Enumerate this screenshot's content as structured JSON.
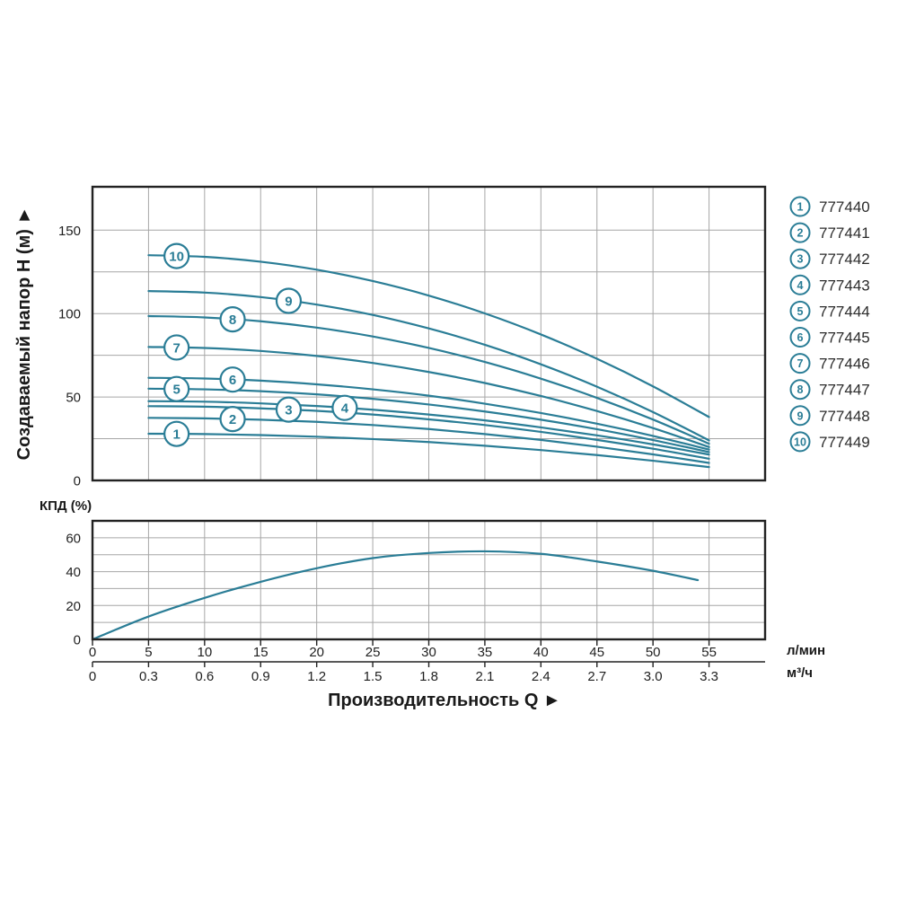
{
  "colors": {
    "accent": "#2a7d96",
    "grid": "#a6a6a6",
    "border": "#222222",
    "text": "#1a1a1a",
    "legend_text": "#2b2b2b"
  },
  "head_chart": {
    "ylabel": "Создаваемый напор H (м) ►",
    "yticks": [
      0,
      50,
      100,
      150
    ]
  },
  "efficiency_chart": {
    "title": "КПД (%)",
    "yticks": [
      0,
      20,
      40,
      60
    ]
  },
  "x_axis": {
    "title": "Производительность Q  ►",
    "primary_unit": "л/мин",
    "secondary_unit": "м³/ч",
    "primary_ticks": [
      "0",
      "5",
      "10",
      "15",
      "20",
      "25",
      "30",
      "35",
      "40",
      "45",
      "50",
      "55"
    ],
    "secondary_ticks": [
      "0",
      "0.3",
      "0.6",
      "0.9",
      "1.2",
      "1.5",
      "1.8",
      "2.1",
      "2.4",
      "2.7",
      "3.0",
      "3.3"
    ]
  },
  "legend": {
    "items": [
      {
        "num": "1",
        "part": "777440"
      },
      {
        "num": "2",
        "part": "777441"
      },
      {
        "num": "3",
        "part": "777442"
      },
      {
        "num": "4",
        "part": "777443"
      },
      {
        "num": "5",
        "part": "777444"
      },
      {
        "num": "6",
        "part": "777445"
      },
      {
        "num": "7",
        "part": "777446"
      },
      {
        "num": "8",
        "part": "777447"
      },
      {
        "num": "9",
        "part": "777448"
      },
      {
        "num": "10",
        "part": "777449"
      }
    ]
  },
  "chart_data": [
    {
      "type": "line",
      "title": "Pump head curves",
      "ylabel": "Создаваемый напор H (м)",
      "xlabel": "Производительность Q",
      "xlim": [
        0,
        60
      ],
      "ylim": [
        0,
        176
      ],
      "grid": true,
      "x_units": "л/мин",
      "series": [
        {
          "name": "1",
          "part": "777440",
          "label_q": 7.5,
          "points": [
            [
              5,
              28
            ],
            [
              10,
              27.8
            ],
            [
              15,
              27.2
            ],
            [
              20,
              26.2
            ],
            [
              25,
              24.8
            ],
            [
              30,
              23
            ],
            [
              35,
              20.8
            ],
            [
              40,
              18.2
            ],
            [
              45,
              15.2
            ],
            [
              50,
              11.8
            ],
            [
              55,
              8
            ]
          ]
        },
        {
          "name": "2",
          "part": "777441",
          "label_q": 12.5,
          "points": [
            [
              5,
              37.5
            ],
            [
              10,
              37.2
            ],
            [
              15,
              36.4
            ],
            [
              20,
              35.1
            ],
            [
              25,
              33.2
            ],
            [
              30,
              30.8
            ],
            [
              35,
              27.8
            ],
            [
              40,
              24.3
            ],
            [
              45,
              20.2
            ],
            [
              50,
              15.6
            ],
            [
              55,
              10.5
            ]
          ]
        },
        {
          "name": "3",
          "part": "777442",
          "label_q": 17.5,
          "points": [
            [
              5,
              44.5
            ],
            [
              10,
              44.2
            ],
            [
              15,
              43.2
            ],
            [
              20,
              41.7
            ],
            [
              25,
              39.5
            ],
            [
              30,
              36.6
            ],
            [
              35,
              33.2
            ],
            [
              40,
              29.1
            ],
            [
              45,
              24.3
            ],
            [
              50,
              19
            ],
            [
              55,
              13
            ]
          ]
        },
        {
          "name": "4",
          "part": "777443",
          "label_q": 22.5,
          "points": [
            [
              5,
              47.5
            ],
            [
              10,
              47.2
            ],
            [
              15,
              46.2
            ],
            [
              20,
              44.6
            ],
            [
              25,
              42.4
            ],
            [
              30,
              39.5
            ],
            [
              35,
              36
            ],
            [
              40,
              31.8
            ],
            [
              45,
              27
            ],
            [
              50,
              21.6
            ],
            [
              55,
              15.5
            ]
          ]
        },
        {
          "name": "5",
          "part": "777444",
          "label_q": 7.5,
          "points": [
            [
              5,
              55
            ],
            [
              10,
              54.6
            ],
            [
              15,
              53.5
            ],
            [
              20,
              51.6
            ],
            [
              25,
              48.9
            ],
            [
              30,
              45.5
            ],
            [
              35,
              41.3
            ],
            [
              40,
              36.4
            ],
            [
              45,
              30.7
            ],
            [
              50,
              24.2
            ],
            [
              55,
              17
            ]
          ]
        },
        {
          "name": "6",
          "part": "777445",
          "label_q": 12.5,
          "points": [
            [
              5,
              61.5
            ],
            [
              10,
              61.1
            ],
            [
              15,
              59.8
            ],
            [
              20,
              57.6
            ],
            [
              25,
              54.6
            ],
            [
              30,
              50.8
            ],
            [
              35,
              46
            ],
            [
              40,
              40.4
            ],
            [
              45,
              34
            ],
            [
              50,
              26.7
            ],
            [
              55,
              18.5
            ]
          ]
        },
        {
          "name": "7",
          "part": "777446",
          "label_q": 7.5,
          "points": [
            [
              5,
              80
            ],
            [
              10,
              79.4
            ],
            [
              15,
              77.6
            ],
            [
              20,
              74.6
            ],
            [
              25,
              70.4
            ],
            [
              30,
              65
            ],
            [
              35,
              58.4
            ],
            [
              40,
              50.6
            ],
            [
              45,
              41.6
            ],
            [
              50,
              31.4
            ],
            [
              55,
              20
            ]
          ]
        },
        {
          "name": "8",
          "part": "777447",
          "label_q": 12.5,
          "points": [
            [
              5,
              98.5
            ],
            [
              10,
              97.7
            ],
            [
              15,
              95.4
            ],
            [
              20,
              91.6
            ],
            [
              25,
              86.3
            ],
            [
              30,
              79.4
            ],
            [
              35,
              71
            ],
            [
              40,
              61
            ],
            [
              45,
              49.5
            ],
            [
              50,
              36.5
            ],
            [
              55,
              22
            ]
          ]
        },
        {
          "name": "9",
          "part": "777448",
          "label_q": 17.5,
          "points": [
            [
              5,
              113.5
            ],
            [
              10,
              112.6
            ],
            [
              15,
              109.9
            ],
            [
              20,
              105.4
            ],
            [
              25,
              99.2
            ],
            [
              30,
              91.1
            ],
            [
              35,
              81.3
            ],
            [
              40,
              69.6
            ],
            [
              45,
              56.2
            ],
            [
              50,
              41
            ],
            [
              55,
              24
            ]
          ]
        },
        {
          "name": "10",
          "part": "777449",
          "label_q": 7.5,
          "points": [
            [
              5,
              135
            ],
            [
              10,
              134
            ],
            [
              15,
              131.1
            ],
            [
              20,
              126.3
            ],
            [
              25,
              119.5
            ],
            [
              30,
              110.8
            ],
            [
              35,
              100.1
            ],
            [
              40,
              87.5
            ],
            [
              45,
              72.9
            ],
            [
              50,
              56.4
            ],
            [
              55,
              38
            ]
          ]
        }
      ]
    },
    {
      "type": "line",
      "title": "КПД (%)",
      "ylabel": "КПД (%)",
      "xlabel": "Производительность Q",
      "xlim": [
        0,
        60
      ],
      "ylim": [
        0,
        70
      ],
      "grid": true,
      "series": [
        {
          "name": "КПД",
          "points": [
            [
              0,
              0
            ],
            [
              5,
              13.5
            ],
            [
              10,
              24.5
            ],
            [
              15,
              34
            ],
            [
              20,
              42
            ],
            [
              25,
              48
            ],
            [
              30,
              51
            ],
            [
              35,
              52
            ],
            [
              40,
              50.5
            ],
            [
              45,
              46
            ],
            [
              50,
              40.5
            ],
            [
              54,
              35
            ]
          ]
        }
      ]
    }
  ]
}
